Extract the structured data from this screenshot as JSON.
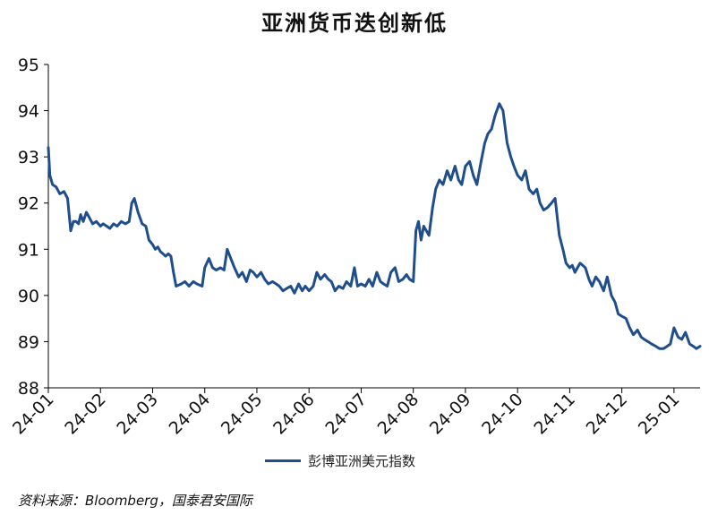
{
  "source_text": "资料来源：Bloomberg，国泰君安国际",
  "chart_data": {
    "type": "line",
    "title": "亚洲货币迭创新低",
    "xlabel": "",
    "ylabel": "",
    "ylim": [
      88,
      95
    ],
    "yticks": [
      88,
      89,
      90,
      91,
      92,
      93,
      94,
      95
    ],
    "xticks": [
      "24-01",
      "24-02",
      "24-03",
      "24-04",
      "24-05",
      "24-06",
      "24-07",
      "24-08",
      "24-09",
      "24-10",
      "24-11",
      "24-12",
      "25-01"
    ],
    "grid": false,
    "legend_position": "bottom-center",
    "series": [
      {
        "name": "彭博亚洲美元指数",
        "color": "#1f4e8c",
        "x": [
          0,
          0.03,
          0.08,
          0.15,
          0.22,
          0.3,
          0.37,
          0.43,
          0.48,
          0.53,
          0.58,
          0.62,
          0.67,
          0.73,
          0.78,
          0.85,
          0.92,
          1.0,
          1.05,
          1.12,
          1.18,
          1.25,
          1.32,
          1.4,
          1.48,
          1.55,
          1.6,
          1.65,
          1.72,
          1.8,
          1.87,
          1.93,
          2.0,
          2.05,
          2.1,
          2.15,
          2.2,
          2.25,
          2.3,
          2.35,
          2.4,
          2.45,
          2.55,
          2.62,
          2.7,
          2.78,
          2.85,
          2.95,
          3.0,
          3.08,
          3.15,
          3.22,
          3.3,
          3.37,
          3.43,
          3.5,
          3.57,
          3.65,
          3.72,
          3.8,
          3.87,
          3.93,
          4.0,
          4.08,
          4.15,
          4.22,
          4.3,
          4.37,
          4.43,
          4.5,
          4.57,
          4.65,
          4.72,
          4.8,
          4.87,
          4.93,
          5.0,
          5.08,
          5.15,
          5.22,
          5.3,
          5.37,
          5.43,
          5.5,
          5.57,
          5.65,
          5.72,
          5.8,
          5.87,
          5.93,
          6.0,
          6.08,
          6.15,
          6.22,
          6.3,
          6.37,
          6.43,
          6.5,
          6.57,
          6.65,
          6.72,
          6.8,
          6.87,
          6.93,
          7.0,
          7.05,
          7.1,
          7.15,
          7.2,
          7.3,
          7.37,
          7.43,
          7.5,
          7.57,
          7.65,
          7.72,
          7.8,
          7.87,
          7.93,
          8.0,
          8.08,
          8.15,
          8.22,
          8.3,
          8.37,
          8.43,
          8.5,
          8.57,
          8.65,
          8.72,
          8.8,
          8.87,
          8.93,
          9.0,
          9.08,
          9.15,
          9.22,
          9.3,
          9.37,
          9.43,
          9.5,
          9.57,
          9.65,
          9.72,
          9.8,
          9.87,
          9.93,
          10.0,
          10.05,
          10.1,
          10.15,
          10.2,
          10.3,
          10.37,
          10.43,
          10.5,
          10.57,
          10.65,
          10.72,
          10.8,
          10.87,
          10.93,
          11.0,
          11.08,
          11.15,
          11.22,
          11.3,
          11.37,
          11.43,
          11.5,
          11.57,
          11.65,
          11.72,
          11.8,
          11.87,
          11.93,
          12.0,
          12.08,
          12.15,
          12.22,
          12.3,
          12.37,
          12.43,
          12.5
        ],
        "values": [
          93.2,
          92.6,
          92.4,
          92.35,
          92.2,
          92.25,
          92.1,
          91.4,
          91.6,
          91.6,
          91.55,
          91.75,
          91.6,
          91.8,
          91.7,
          91.55,
          91.6,
          91.5,
          91.55,
          91.5,
          91.45,
          91.55,
          91.5,
          91.6,
          91.55,
          91.6,
          92.0,
          92.1,
          91.8,
          91.55,
          91.5,
          91.2,
          91.1,
          91.0,
          91.05,
          90.95,
          90.9,
          90.85,
          90.9,
          90.85,
          90.5,
          90.2,
          90.25,
          90.3,
          90.2,
          90.3,
          90.25,
          90.2,
          90.6,
          90.8,
          90.6,
          90.55,
          90.6,
          90.55,
          91.0,
          90.8,
          90.6,
          90.4,
          90.5,
          90.3,
          90.55,
          90.5,
          90.4,
          90.5,
          90.35,
          90.25,
          90.3,
          90.25,
          90.2,
          90.1,
          90.15,
          90.2,
          90.05,
          90.25,
          90.1,
          90.2,
          90.1,
          90.2,
          90.5,
          90.35,
          90.45,
          90.35,
          90.3,
          90.1,
          90.2,
          90.15,
          90.3,
          90.2,
          90.6,
          90.2,
          90.25,
          90.2,
          90.35,
          90.2,
          90.5,
          90.3,
          90.25,
          90.2,
          90.5,
          90.6,
          90.3,
          90.35,
          90.45,
          90.35,
          90.3,
          91.4,
          91.6,
          91.2,
          91.5,
          91.3,
          91.9,
          92.3,
          92.5,
          92.4,
          92.7,
          92.5,
          92.8,
          92.5,
          92.4,
          92.8,
          92.9,
          92.6,
          92.4,
          92.9,
          93.3,
          93.5,
          93.6,
          93.9,
          94.15,
          94.0,
          93.3,
          93.0,
          92.8,
          92.6,
          92.5,
          92.7,
          92.3,
          92.2,
          92.3,
          92.0,
          91.85,
          91.9,
          92.0,
          92.1,
          91.3,
          91.0,
          90.7,
          90.6,
          90.65,
          90.5,
          90.6,
          90.7,
          90.6,
          90.35,
          90.2,
          90.4,
          90.3,
          90.1,
          90.4,
          90.0,
          89.85,
          89.6,
          89.55,
          89.5,
          89.3,
          89.15,
          89.25,
          89.1,
          89.05,
          89.0,
          88.95,
          88.9,
          88.85,
          88.85,
          88.9,
          88.95,
          89.3,
          89.1,
          89.05,
          89.2,
          88.95,
          88.9,
          88.85,
          88.9
        ]
      }
    ]
  }
}
